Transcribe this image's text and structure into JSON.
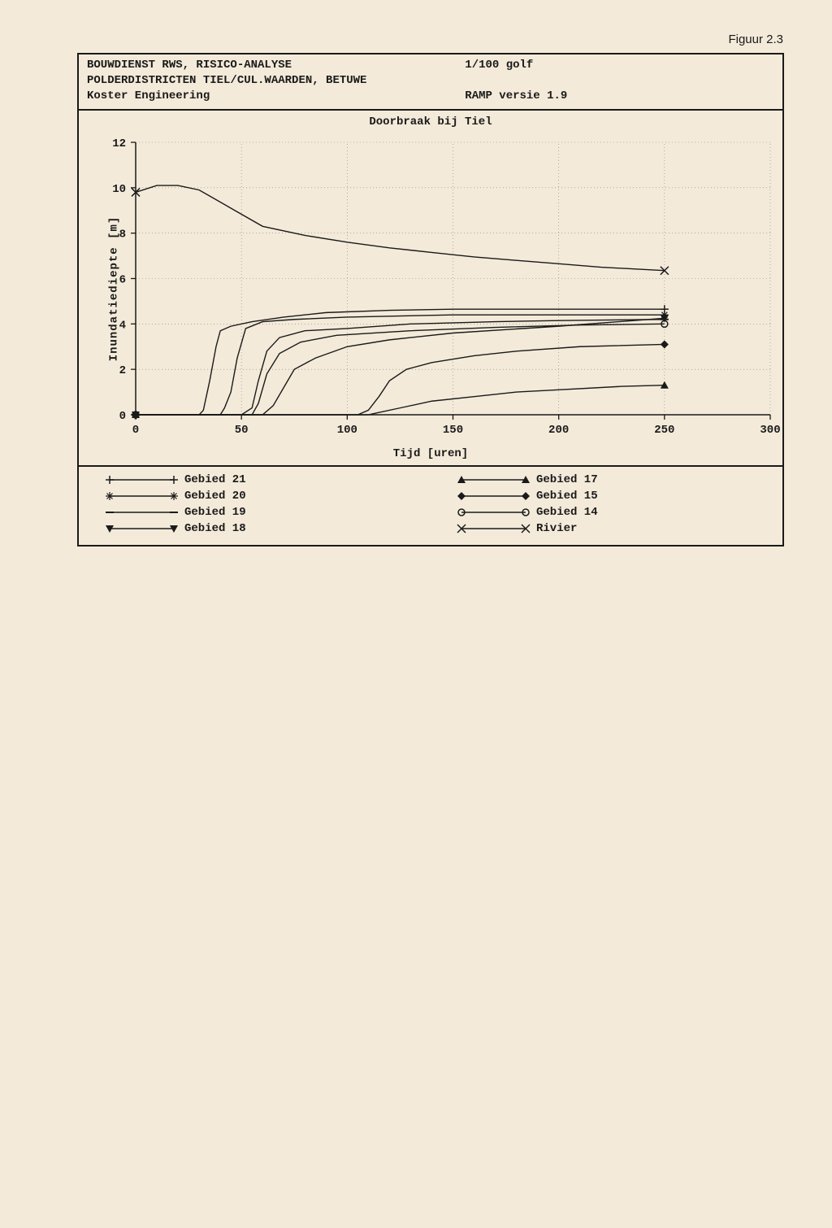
{
  "figure_label": "Figuur 2.3",
  "header": {
    "line1_left": "BOUWDIENST RWS, RISICO-ANALYSE",
    "line1_right": "1/100 golf",
    "line2_left": "POLDERDISTRICTEN  TIEL/CUL.WAARDEN, BETUWE",
    "line2_right": "",
    "line3_left": "Koster Engineering",
    "line3_right": "RAMP versie 1.9"
  },
  "chart": {
    "title": "Doorbraak bij Tiel",
    "xlabel": "Tijd [uren]",
    "ylabel": "Inundatiediepte [m]",
    "xlim": [
      0,
      300
    ],
    "ylim": [
      0,
      12
    ],
    "xticks": [
      0,
      50,
      100,
      150,
      200,
      250,
      300
    ],
    "yticks": [
      0,
      2,
      4,
      6,
      8,
      10,
      12
    ],
    "grid_xlines": [
      50,
      100,
      150,
      200,
      250,
      300
    ],
    "grid_ylines": [
      2,
      4,
      6,
      8,
      10,
      12
    ],
    "axis_color": "#1a1a1a",
    "grid_color": "#8a8374",
    "line_color": "#1a1a1a",
    "line_width": 1.4,
    "marker_size": 5,
    "tick_fontsize": 14,
    "series": [
      {
        "name": "Gebied 21",
        "marker": "plus",
        "data": [
          [
            0,
            0
          ],
          [
            5,
            0
          ],
          [
            30,
            0
          ],
          [
            32,
            0.2
          ],
          [
            35,
            1.5
          ],
          [
            38,
            3.0
          ],
          [
            40,
            3.7
          ],
          [
            45,
            3.9
          ],
          [
            55,
            4.1
          ],
          [
            70,
            4.3
          ],
          [
            90,
            4.5
          ],
          [
            120,
            4.6
          ],
          [
            150,
            4.65
          ],
          [
            200,
            4.65
          ],
          [
            250,
            4.65
          ]
        ]
      },
      {
        "name": "Gebied 20",
        "marker": "star",
        "data": [
          [
            0,
            0
          ],
          [
            40,
            0
          ],
          [
            42,
            0.3
          ],
          [
            45,
            1.0
          ],
          [
            48,
            2.5
          ],
          [
            52,
            3.8
          ],
          [
            60,
            4.1
          ],
          [
            75,
            4.2
          ],
          [
            100,
            4.3
          ],
          [
            150,
            4.4
          ],
          [
            200,
            4.4
          ],
          [
            250,
            4.4
          ]
        ]
      },
      {
        "name": "Gebied 19",
        "marker": "dash",
        "data": [
          [
            0,
            0
          ],
          [
            50,
            0
          ],
          [
            55,
            0.3
          ],
          [
            58,
            1.5
          ],
          [
            62,
            2.8
          ],
          [
            68,
            3.4
          ],
          [
            80,
            3.7
          ],
          [
            100,
            3.8
          ],
          [
            130,
            4.0
          ],
          [
            170,
            4.1
          ],
          [
            200,
            4.15
          ],
          [
            250,
            4.2
          ]
        ]
      },
      {
        "name": "Gebied 18",
        "marker": "triangle-down",
        "data": [
          [
            0,
            0
          ],
          [
            60,
            0
          ],
          [
            65,
            0.4
          ],
          [
            70,
            1.2
          ],
          [
            75,
            2.0
          ],
          [
            85,
            2.5
          ],
          [
            100,
            3.0
          ],
          [
            120,
            3.3
          ],
          [
            150,
            3.6
          ],
          [
            200,
            3.9
          ],
          [
            250,
            4.25
          ]
        ]
      },
      {
        "name": "Gebied 17",
        "marker": "triangle-up",
        "data": [
          [
            0,
            0
          ],
          [
            110,
            0
          ],
          [
            115,
            0.1
          ],
          [
            125,
            0.3
          ],
          [
            140,
            0.6
          ],
          [
            160,
            0.8
          ],
          [
            180,
            1.0
          ],
          [
            200,
            1.1
          ],
          [
            230,
            1.25
          ],
          [
            250,
            1.3
          ]
        ]
      },
      {
        "name": "Gebied 15",
        "marker": "diamond",
        "data": [
          [
            0,
            0
          ],
          [
            105,
            0
          ],
          [
            110,
            0.2
          ],
          [
            115,
            0.8
          ],
          [
            120,
            1.5
          ],
          [
            128,
            2.0
          ],
          [
            140,
            2.3
          ],
          [
            160,
            2.6
          ],
          [
            180,
            2.8
          ],
          [
            210,
            3.0
          ],
          [
            250,
            3.1
          ]
        ]
      },
      {
        "name": "Gebied 14",
        "marker": "circle",
        "data": [
          [
            0,
            0
          ],
          [
            55,
            0
          ],
          [
            58,
            0.5
          ],
          [
            62,
            1.8
          ],
          [
            68,
            2.7
          ],
          [
            78,
            3.2
          ],
          [
            95,
            3.5
          ],
          [
            130,
            3.7
          ],
          [
            170,
            3.85
          ],
          [
            210,
            3.95
          ],
          [
            250,
            4.0
          ]
        ]
      },
      {
        "name": "Rivier",
        "marker": "cross",
        "data": [
          [
            0,
            9.8
          ],
          [
            10,
            10.1
          ],
          [
            20,
            10.1
          ],
          [
            30,
            9.9
          ],
          [
            45,
            9.1
          ],
          [
            60,
            8.3
          ],
          [
            80,
            7.9
          ],
          [
            100,
            7.6
          ],
          [
            120,
            7.35
          ],
          [
            140,
            7.15
          ],
          [
            160,
            6.95
          ],
          [
            180,
            6.8
          ],
          [
            200,
            6.65
          ],
          [
            220,
            6.5
          ],
          [
            240,
            6.4
          ],
          [
            250,
            6.35
          ]
        ]
      }
    ],
    "legend": {
      "col1": [
        {
          "marker": "plus",
          "label": "Gebied 21"
        },
        {
          "marker": "star",
          "label": "Gebied 20"
        },
        {
          "marker": "dash",
          "label": "Gebied 19"
        },
        {
          "marker": "triangle-down",
          "label": "Gebied 18"
        }
      ],
      "col2": [
        {
          "marker": "triangle-up",
          "label": "Gebied 17"
        },
        {
          "marker": "diamond",
          "label": "Gebied 15"
        },
        {
          "marker": "circle",
          "label": "Gebied 14"
        },
        {
          "marker": "cross",
          "label": "Rivier"
        }
      ]
    }
  }
}
